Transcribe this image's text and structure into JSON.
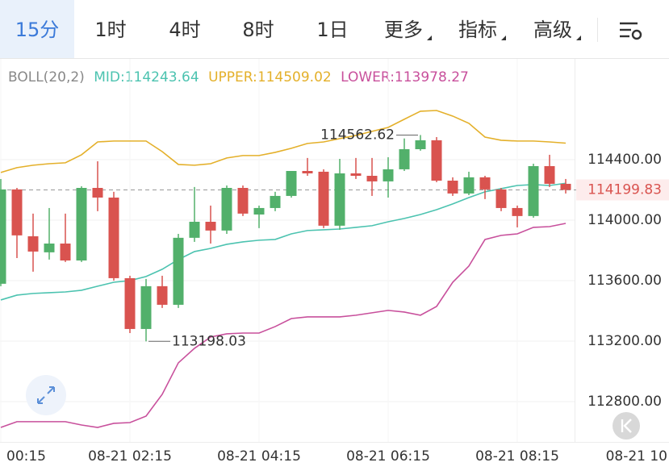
{
  "tabs": [
    "15分",
    "1时",
    "4时",
    "8时",
    "1日",
    "更多",
    "指标",
    "高级"
  ],
  "chart_data": {
    "type": "candlestick",
    "indicator": "BOLL(20,2)",
    "up_color": "#52b06b",
    "down_color": "#d9534f",
    "open": [
      113579,
      114203,
      113893,
      113787,
      113845,
      113733,
      114213,
      114149,
      113616,
      113280,
      113563,
      113440,
      113883,
      113989,
      113931,
      114213,
      114037,
      114080,
      114160,
      114325,
      114320,
      113963,
      114309,
      114293,
      114256,
      114336,
      114469,
      114528,
      114261,
      114176,
      114283,
      114203,
      114080,
      114027,
      114357,
      114240
    ],
    "high": [
      114272,
      114213,
      114043,
      114080,
      114043,
      114224,
      114389,
      114187,
      113632,
      113611,
      113632,
      113909,
      114219,
      114096,
      114229,
      114229,
      114096,
      114187,
      114325,
      114411,
      114336,
      114405,
      114411,
      114411,
      114416,
      114540,
      114562.62,
      114549,
      114283,
      114320,
      114293,
      114213,
      114096,
      114373,
      114432,
      114272
    ],
    "low": [
      113563,
      113749,
      113659,
      113739,
      113723,
      113723,
      114059,
      113600,
      113253,
      113198.03,
      113419,
      113419,
      113856,
      113845,
      113909,
      114027,
      113947,
      114059,
      114149,
      114293,
      113947,
      113936,
      114272,
      114160,
      114149,
      114325,
      114459,
      114251,
      114160,
      114165,
      114139,
      114059,
      113952,
      114016,
      114219,
      114176
    ],
    "close": [
      114203,
      113899,
      113792,
      113845,
      113733,
      114213,
      114149,
      113616,
      113280,
      113563,
      113440,
      113883,
      113989,
      113931,
      114213,
      114043,
      114080,
      114160,
      114325,
      114309,
      113963,
      114309,
      114293,
      114256,
      114336,
      114469,
      114528,
      114261,
      114176,
      114283,
      114203,
      114080,
      114027,
      114357,
      114240,
      114199.83
    ],
    "series": [
      {
        "name": "MID:114243.64",
        "color": "#4cc3b0",
        "values": [
          113472,
          113504,
          113515,
          113520,
          113525,
          113536,
          113563,
          113589,
          113600,
          113627,
          113675,
          113739,
          113792,
          113813,
          113840,
          113856,
          113867,
          113872,
          113909,
          113931,
          113936,
          113941,
          113952,
          113963,
          113989,
          114011,
          114037,
          114069,
          114107,
          114149,
          114187,
          114208,
          114229,
          114235,
          114229,
          114243.64
        ]
      },
      {
        "name": "UPPER:114509.02",
        "color": "#e4b02a",
        "values": [
          114315,
          114347,
          114363,
          114373,
          114379,
          114432,
          114517,
          114523,
          114523,
          114523,
          114453,
          114368,
          114363,
          114373,
          114411,
          114427,
          114427,
          114448,
          114475,
          114507,
          114517,
          114539,
          114560,
          114587,
          114613,
          114667,
          114720,
          114725,
          114688,
          114640,
          114549,
          114528,
          114523,
          114523,
          114517,
          114509.02
        ]
      },
      {
        "name": "LOWER:113978.27",
        "color": "#c8509c",
        "values": [
          112629,
          112667,
          112667,
          112667,
          112667,
          112645,
          112629,
          112656,
          112661,
          112704,
          112848,
          113056,
          113152,
          113227,
          113248,
          113253,
          113253,
          113296,
          113349,
          113360,
          113360,
          113360,
          113371,
          113387,
          113403,
          113392,
          113371,
          113429,
          113589,
          113696,
          113872,
          113899,
          113909,
          113952,
          113957,
          113978.27
        ]
      }
    ],
    "xticks": [
      {
        "value": 0,
        "label": "00:15"
      },
      {
        "value": 8,
        "label": "08-21 02:15"
      },
      {
        "value": 16,
        "label": "08-21 04:15"
      },
      {
        "value": 24,
        "label": "08-21 06:15"
      },
      {
        "value": 32,
        "label": "08-21 08:15"
      },
      {
        "value": 40,
        "label": "08-21 10"
      }
    ],
    "ylim": [
      112533,
      114869
    ],
    "yticks": [
      {
        "value": 112800,
        "label": "112800.00"
      },
      {
        "value": 113200,
        "label": "113200.00"
      },
      {
        "value": 113600,
        "label": "113600.00"
      },
      {
        "value": 114000,
        "label": "114000.00"
      },
      {
        "value": 114400,
        "label": "114400.00"
      }
    ],
    "grid": true
  }
}
